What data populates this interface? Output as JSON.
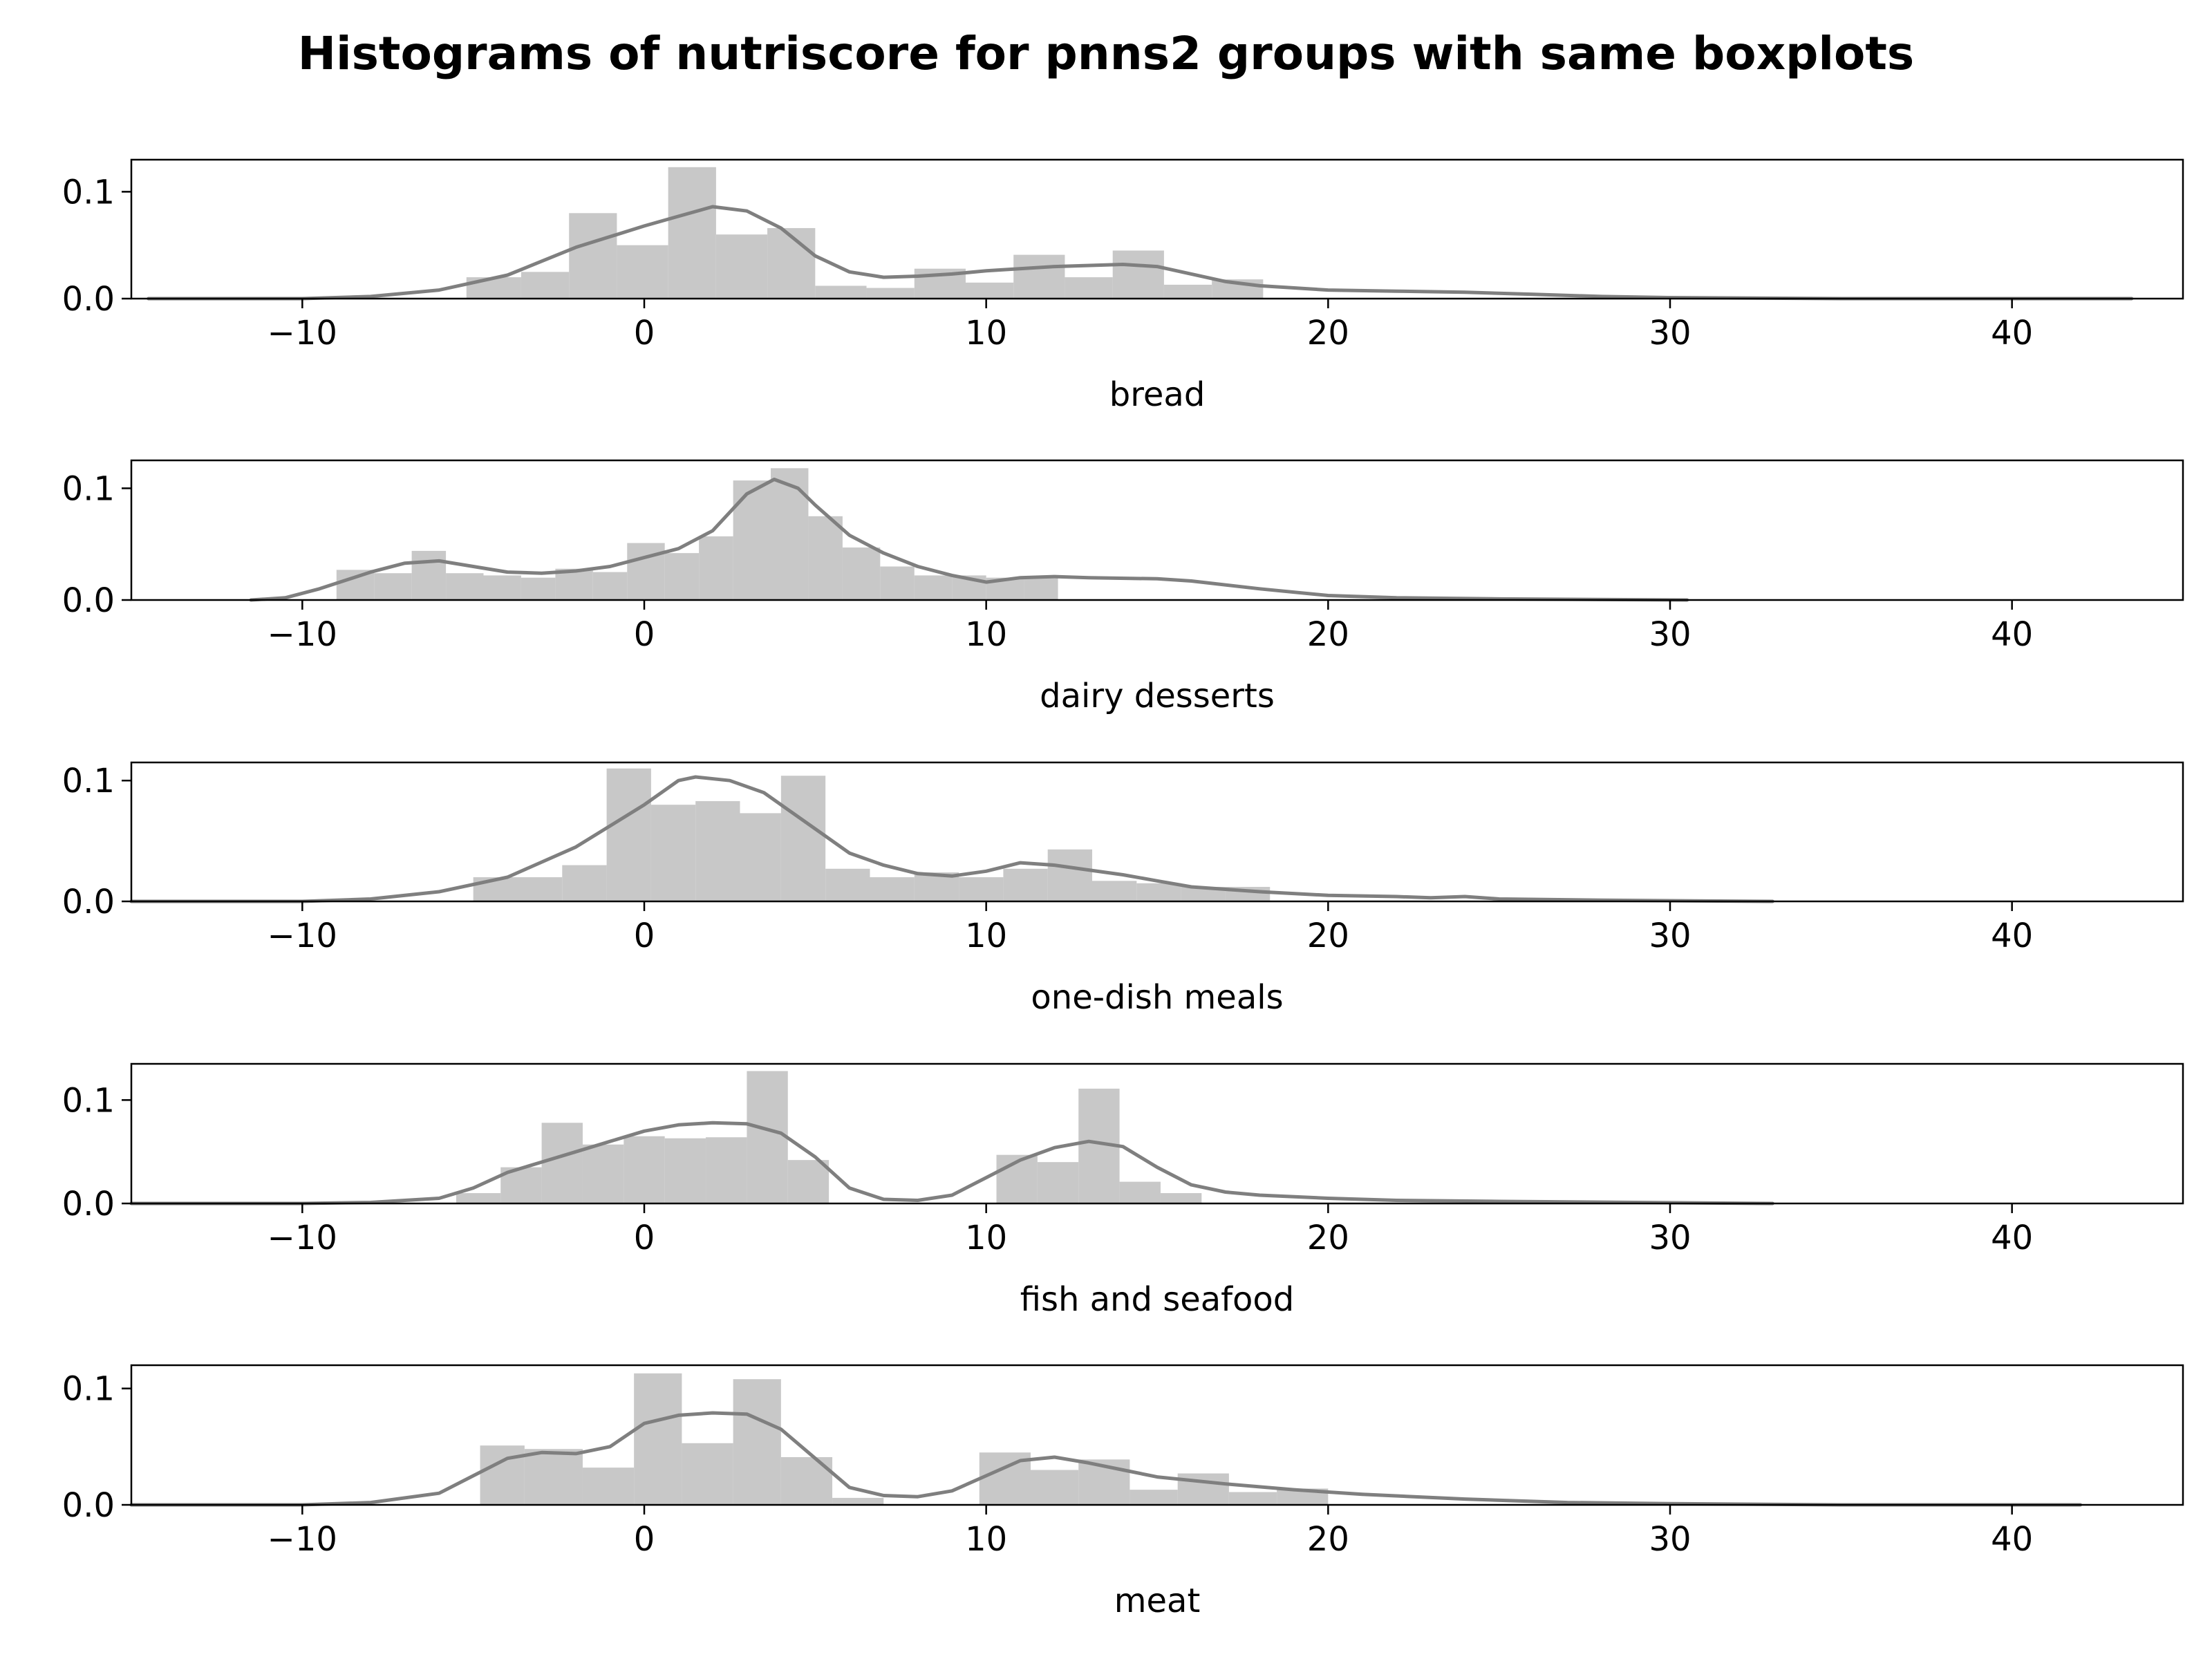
{
  "title": "Histograms of nutriscore for pnns2 groups with same boxplots",
  "colors": {
    "bar": "#c8c8c8",
    "kde": "#7f7f7f",
    "frame": "#000000"
  },
  "chart_data": [
    {
      "type": "bar",
      "xlabel": "bread",
      "xlim": [
        -15,
        45
      ],
      "ylim": [
        0,
        0.13
      ],
      "xticks": [
        -10,
        0,
        10,
        20,
        30,
        40
      ],
      "xtick_labels": [
        "−10",
        "0",
        "10",
        "20",
        "30",
        "40"
      ],
      "yticks": [
        0,
        0.1
      ],
      "ytick_labels": [
        "0.0",
        "0.1"
      ],
      "bins": [
        {
          "x0": -5.2,
          "x1": -3.6,
          "y": 0.02
        },
        {
          "x0": -3.6,
          "x1": -2.2,
          "y": 0.025
        },
        {
          "x0": -2.2,
          "x1": -0.8,
          "y": 0.08
        },
        {
          "x0": -0.8,
          "x1": 0.7,
          "y": 0.05
        },
        {
          "x0": 0.7,
          "x1": 2.1,
          "y": 0.123
        },
        {
          "x0": 2.1,
          "x1": 3.6,
          "y": 0.06
        },
        {
          "x0": 3.6,
          "x1": 5.0,
          "y": 0.066
        },
        {
          "x0": 5.0,
          "x1": 6.5,
          "y": 0.012
        },
        {
          "x0": 6.5,
          "x1": 7.9,
          "y": 0.01
        },
        {
          "x0": 7.9,
          "x1": 9.4,
          "y": 0.028
        },
        {
          "x0": 9.4,
          "x1": 10.8,
          "y": 0.015
        },
        {
          "x0": 10.8,
          "x1": 12.3,
          "y": 0.041
        },
        {
          "x0": 12.3,
          "x1": 13.7,
          "y": 0.02
        },
        {
          "x0": 13.7,
          "x1": 15.2,
          "y": 0.045
        },
        {
          "x0": 15.2,
          "x1": 16.6,
          "y": 0.013
        },
        {
          "x0": 16.6,
          "x1": 18.1,
          "y": 0.018
        }
      ],
      "kde": [
        [
          -14.5,
          0
        ],
        [
          -10,
          0
        ],
        [
          -8,
          0.002
        ],
        [
          -6,
          0.008
        ],
        [
          -4,
          0.022
        ],
        [
          -2,
          0.048
        ],
        [
          0,
          0.068
        ],
        [
          1,
          0.077
        ],
        [
          2,
          0.086
        ],
        [
          3,
          0.082
        ],
        [
          4,
          0.066
        ],
        [
          5,
          0.04
        ],
        [
          6,
          0.025
        ],
        [
          7,
          0.02
        ],
        [
          8,
          0.021
        ],
        [
          9,
          0.023
        ],
        [
          10,
          0.026
        ],
        [
          12,
          0.03
        ],
        [
          14,
          0.032
        ],
        [
          15,
          0.03
        ],
        [
          16,
          0.023
        ],
        [
          17,
          0.016
        ],
        [
          18,
          0.012
        ],
        [
          20,
          0.008
        ],
        [
          22,
          0.007
        ],
        [
          24,
          0.006
        ],
        [
          26,
          0.004
        ],
        [
          28,
          0.002
        ],
        [
          30,
          0.001
        ],
        [
          35,
          0
        ],
        [
          43.5,
          0
        ]
      ]
    },
    {
      "type": "bar",
      "xlabel": "dairy desserts",
      "xlim": [
        -15,
        45
      ],
      "ylim": [
        0,
        0.125
      ],
      "xticks": [
        -10,
        0,
        10,
        20,
        30,
        40
      ],
      "xtick_labels": [
        "−10",
        "0",
        "10",
        "20",
        "30",
        "40"
      ],
      "yticks": [
        0,
        0.1
      ],
      "ytick_labels": [
        "0.0",
        "0.1"
      ],
      "bins": [
        {
          "x0": -9.0,
          "x1": -7.9,
          "y": 0.027
        },
        {
          "x0": -7.9,
          "x1": -6.8,
          "y": 0.024
        },
        {
          "x0": -6.8,
          "x1": -5.8,
          "y": 0.044
        },
        {
          "x0": -5.8,
          "x1": -4.7,
          "y": 0.024
        },
        {
          "x0": -4.7,
          "x1": -3.6,
          "y": 0.022
        },
        {
          "x0": -3.6,
          "x1": -2.6,
          "y": 0.02
        },
        {
          "x0": -2.6,
          "x1": -1.5,
          "y": 0.028
        },
        {
          "x0": -1.5,
          "x1": -0.5,
          "y": 0.025
        },
        {
          "x0": -0.5,
          "x1": 0.6,
          "y": 0.051
        },
        {
          "x0": 0.6,
          "x1": 1.6,
          "y": 0.042
        },
        {
          "x0": 1.6,
          "x1": 2.6,
          "y": 0.057
        },
        {
          "x0": 2.6,
          "x1": 3.7,
          "y": 0.107
        },
        {
          "x0": 3.7,
          "x1": 4.8,
          "y": 0.118
        },
        {
          "x0": 4.8,
          "x1": 5.8,
          "y": 0.075
        },
        {
          "x0": 5.8,
          "x1": 6.9,
          "y": 0.047
        },
        {
          "x0": 6.9,
          "x1": 7.9,
          "y": 0.03
        },
        {
          "x0": 7.9,
          "x1": 9.0,
          "y": 0.022
        },
        {
          "x0": 9.0,
          "x1": 10.0,
          "y": 0.022
        },
        {
          "x0": 10.0,
          "x1": 11.1,
          "y": 0.02
        },
        {
          "x0": 11.1,
          "x1": 12.1,
          "y": 0.02
        }
      ],
      "kde": [
        [
          -11.5,
          0
        ],
        [
          -10.5,
          0.002
        ],
        [
          -9.5,
          0.01
        ],
        [
          -8,
          0.025
        ],
        [
          -7,
          0.033
        ],
        [
          -6,
          0.035
        ],
        [
          -5,
          0.03
        ],
        [
          -4,
          0.025
        ],
        [
          -3,
          0.024
        ],
        [
          -2,
          0.026
        ],
        [
          -1,
          0.03
        ],
        [
          0,
          0.038
        ],
        [
          1,
          0.046
        ],
        [
          2,
          0.062
        ],
        [
          3,
          0.095
        ],
        [
          3.8,
          0.108
        ],
        [
          4.5,
          0.1
        ],
        [
          5,
          0.085
        ],
        [
          6,
          0.058
        ],
        [
          7,
          0.042
        ],
        [
          8,
          0.03
        ],
        [
          9,
          0.022
        ],
        [
          10,
          0.016
        ],
        [
          11,
          0.02
        ],
        [
          12,
          0.021
        ],
        [
          13,
          0.02
        ],
        [
          15,
          0.019
        ],
        [
          16,
          0.017
        ],
        [
          18,
          0.01
        ],
        [
          20,
          0.004
        ],
        [
          22,
          0.002
        ],
        [
          25,
          0.001
        ],
        [
          30.5,
          0
        ]
      ]
    },
    {
      "type": "bar",
      "xlabel": "one-dish meals",
      "xlim": [
        -15,
        45
      ],
      "ylim": [
        0,
        0.115
      ],
      "xticks": [
        -10,
        0,
        10,
        20,
        30,
        40
      ],
      "xtick_labels": [
        "−10",
        "0",
        "10",
        "20",
        "30",
        "40"
      ],
      "yticks": [
        0,
        0.1
      ],
      "ytick_labels": [
        "0.0",
        "0.1"
      ],
      "bins": [
        {
          "x0": -5.0,
          "x1": -3.7,
          "y": 0.02
        },
        {
          "x0": -3.7,
          "x1": -2.4,
          "y": 0.02
        },
        {
          "x0": -2.4,
          "x1": -1.1,
          "y": 0.03
        },
        {
          "x0": -1.1,
          "x1": 0.2,
          "y": 0.11
        },
        {
          "x0": 0.2,
          "x1": 1.5,
          "y": 0.08
        },
        {
          "x0": 1.5,
          "x1": 2.8,
          "y": 0.083
        },
        {
          "x0": 2.8,
          "x1": 4.0,
          "y": 0.073
        },
        {
          "x0": 4.0,
          "x1": 5.3,
          "y": 0.104
        },
        {
          "x0": 5.3,
          "x1": 6.6,
          "y": 0.027
        },
        {
          "x0": 6.6,
          "x1": 7.9,
          "y": 0.02
        },
        {
          "x0": 7.9,
          "x1": 9.2,
          "y": 0.024
        },
        {
          "x0": 9.2,
          "x1": 10.5,
          "y": 0.02
        },
        {
          "x0": 10.5,
          "x1": 11.8,
          "y": 0.027
        },
        {
          "x0": 11.8,
          "x1": 13.1,
          "y": 0.043
        },
        {
          "x0": 13.1,
          "x1": 14.4,
          "y": 0.017
        },
        {
          "x0": 14.4,
          "x1": 15.7,
          "y": 0.015
        },
        {
          "x0": 15.7,
          "x1": 17.0,
          "y": 0.012
        },
        {
          "x0": 17.0,
          "x1": 18.3,
          "y": 0.012
        }
      ],
      "kde": [
        [
          -15,
          0
        ],
        [
          -10,
          0
        ],
        [
          -8,
          0.002
        ],
        [
          -6,
          0.008
        ],
        [
          -4,
          0.02
        ],
        [
          -2,
          0.045
        ],
        [
          0,
          0.08
        ],
        [
          1,
          0.1
        ],
        [
          1.5,
          0.103
        ],
        [
          2.5,
          0.1
        ],
        [
          3.5,
          0.09
        ],
        [
          5,
          0.06
        ],
        [
          6,
          0.04
        ],
        [
          7,
          0.03
        ],
        [
          8,
          0.023
        ],
        [
          9,
          0.021
        ],
        [
          10,
          0.025
        ],
        [
          11,
          0.032
        ],
        [
          12,
          0.03
        ],
        [
          13,
          0.026
        ],
        [
          14,
          0.022
        ],
        [
          15,
          0.017
        ],
        [
          16,
          0.012
        ],
        [
          17,
          0.01
        ],
        [
          18,
          0.008
        ],
        [
          20,
          0.005
        ],
        [
          22,
          0.004
        ],
        [
          23,
          0.003
        ],
        [
          24,
          0.004
        ],
        [
          25,
          0.002
        ],
        [
          28,
          0.001
        ],
        [
          33,
          0
        ]
      ]
    },
    {
      "type": "bar",
      "xlabel": "fish and seafood",
      "xlim": [
        -15,
        45
      ],
      "ylim": [
        0,
        0.135
      ],
      "xticks": [
        -10,
        0,
        10,
        20,
        30,
        40
      ],
      "xtick_labels": [
        "−10",
        "0",
        "10",
        "20",
        "30",
        "40"
      ],
      "yticks": [
        0,
        0.1
      ],
      "ytick_labels": [
        "0.0",
        "0.1"
      ],
      "bins": [
        {
          "x0": -5.5,
          "x1": -4.2,
          "y": 0.01
        },
        {
          "x0": -4.2,
          "x1": -3.0,
          "y": 0.035
        },
        {
          "x0": -3.0,
          "x1": -1.8,
          "y": 0.078
        },
        {
          "x0": -1.8,
          "x1": -0.6,
          "y": 0.057
        },
        {
          "x0": -0.6,
          "x1": 0.6,
          "y": 0.065
        },
        {
          "x0": 0.6,
          "x1": 1.8,
          "y": 0.063
        },
        {
          "x0": 1.8,
          "x1": 3.0,
          "y": 0.064
        },
        {
          "x0": 3.0,
          "x1": 4.2,
          "y": 0.128
        },
        {
          "x0": 4.2,
          "x1": 5.4,
          "y": 0.042
        },
        {
          "x0": 10.3,
          "x1": 11.5,
          "y": 0.047
        },
        {
          "x0": 11.5,
          "x1": 12.7,
          "y": 0.04
        },
        {
          "x0": 12.7,
          "x1": 13.9,
          "y": 0.111
        },
        {
          "x0": 13.9,
          "x1": 15.1,
          "y": 0.021
        },
        {
          "x0": 15.1,
          "x1": 16.3,
          "y": 0.01
        }
      ],
      "kde": [
        [
          -15,
          0
        ],
        [
          -10,
          0
        ],
        [
          -8,
          0.001
        ],
        [
          -6,
          0.005
        ],
        [
          -5,
          0.015
        ],
        [
          -4,
          0.03
        ],
        [
          -3,
          0.04
        ],
        [
          -2,
          0.05
        ],
        [
          -1,
          0.06
        ],
        [
          0,
          0.07
        ],
        [
          1,
          0.076
        ],
        [
          2,
          0.078
        ],
        [
          3,
          0.077
        ],
        [
          4,
          0.068
        ],
        [
          5,
          0.045
        ],
        [
          6,
          0.015
        ],
        [
          7,
          0.004
        ],
        [
          8,
          0.003
        ],
        [
          9,
          0.008
        ],
        [
          10,
          0.025
        ],
        [
          11,
          0.042
        ],
        [
          12,
          0.054
        ],
        [
          13,
          0.06
        ],
        [
          14,
          0.055
        ],
        [
          15,
          0.035
        ],
        [
          16,
          0.018
        ],
        [
          17,
          0.011
        ],
        [
          18,
          0.008
        ],
        [
          20,
          0.005
        ],
        [
          22,
          0.003
        ],
        [
          25,
          0.002
        ],
        [
          33,
          0
        ]
      ]
    },
    {
      "type": "bar",
      "xlabel": "meat",
      "xlim": [
        -15,
        45
      ],
      "ylim": [
        0,
        0.12
      ],
      "xticks": [
        -10,
        0,
        10,
        20,
        30,
        40
      ],
      "xtick_labels": [
        "−10",
        "0",
        "10",
        "20",
        "30",
        "40"
      ],
      "yticks": [
        0,
        0.1
      ],
      "ytick_labels": [
        "0.0",
        "0.1"
      ],
      "bins": [
        {
          "x0": -4.8,
          "x1": -3.5,
          "y": 0.051
        },
        {
          "x0": -3.5,
          "x1": -1.8,
          "y": 0.048
        },
        {
          "x0": -1.8,
          "x1": -0.3,
          "y": 0.032
        },
        {
          "x0": -0.3,
          "x1": 1.1,
          "y": 0.113
        },
        {
          "x0": 1.1,
          "x1": 2.6,
          "y": 0.053
        },
        {
          "x0": 2.6,
          "x1": 4.0,
          "y": 0.108
        },
        {
          "x0": 4.0,
          "x1": 5.5,
          "y": 0.041
        },
        {
          "x0": 5.5,
          "x1": 7.0,
          "y": 0.006
        },
        {
          "x0": 9.8,
          "x1": 11.3,
          "y": 0.045
        },
        {
          "x0": 11.3,
          "x1": 12.7,
          "y": 0.03
        },
        {
          "x0": 12.7,
          "x1": 14.2,
          "y": 0.039
        },
        {
          "x0": 14.2,
          "x1": 15.6,
          "y": 0.013
        },
        {
          "x0": 15.6,
          "x1": 17.1,
          "y": 0.027
        },
        {
          "x0": 17.1,
          "x1": 18.5,
          "y": 0.011
        },
        {
          "x0": 18.5,
          "x1": 20.0,
          "y": 0.014
        }
      ],
      "kde": [
        [
          -15,
          0
        ],
        [
          -10,
          0
        ],
        [
          -8,
          0.002
        ],
        [
          -6,
          0.01
        ],
        [
          -5,
          0.025
        ],
        [
          -4,
          0.04
        ],
        [
          -3,
          0.045
        ],
        [
          -2,
          0.044
        ],
        [
          -1,
          0.05
        ],
        [
          0,
          0.07
        ],
        [
          1,
          0.077
        ],
        [
          2,
          0.079
        ],
        [
          3,
          0.078
        ],
        [
          4,
          0.065
        ],
        [
          5,
          0.04
        ],
        [
          6,
          0.015
        ],
        [
          7,
          0.008
        ],
        [
          8,
          0.007
        ],
        [
          9,
          0.012
        ],
        [
          10,
          0.025
        ],
        [
          11,
          0.038
        ],
        [
          12,
          0.041
        ],
        [
          13,
          0.036
        ],
        [
          14,
          0.03
        ],
        [
          15,
          0.024
        ],
        [
          17,
          0.018
        ],
        [
          19,
          0.013
        ],
        [
          21,
          0.009
        ],
        [
          24,
          0.005
        ],
        [
          27,
          0.002
        ],
        [
          30,
          0.001
        ],
        [
          35,
          0
        ],
        [
          42,
          0
        ]
      ]
    }
  ]
}
